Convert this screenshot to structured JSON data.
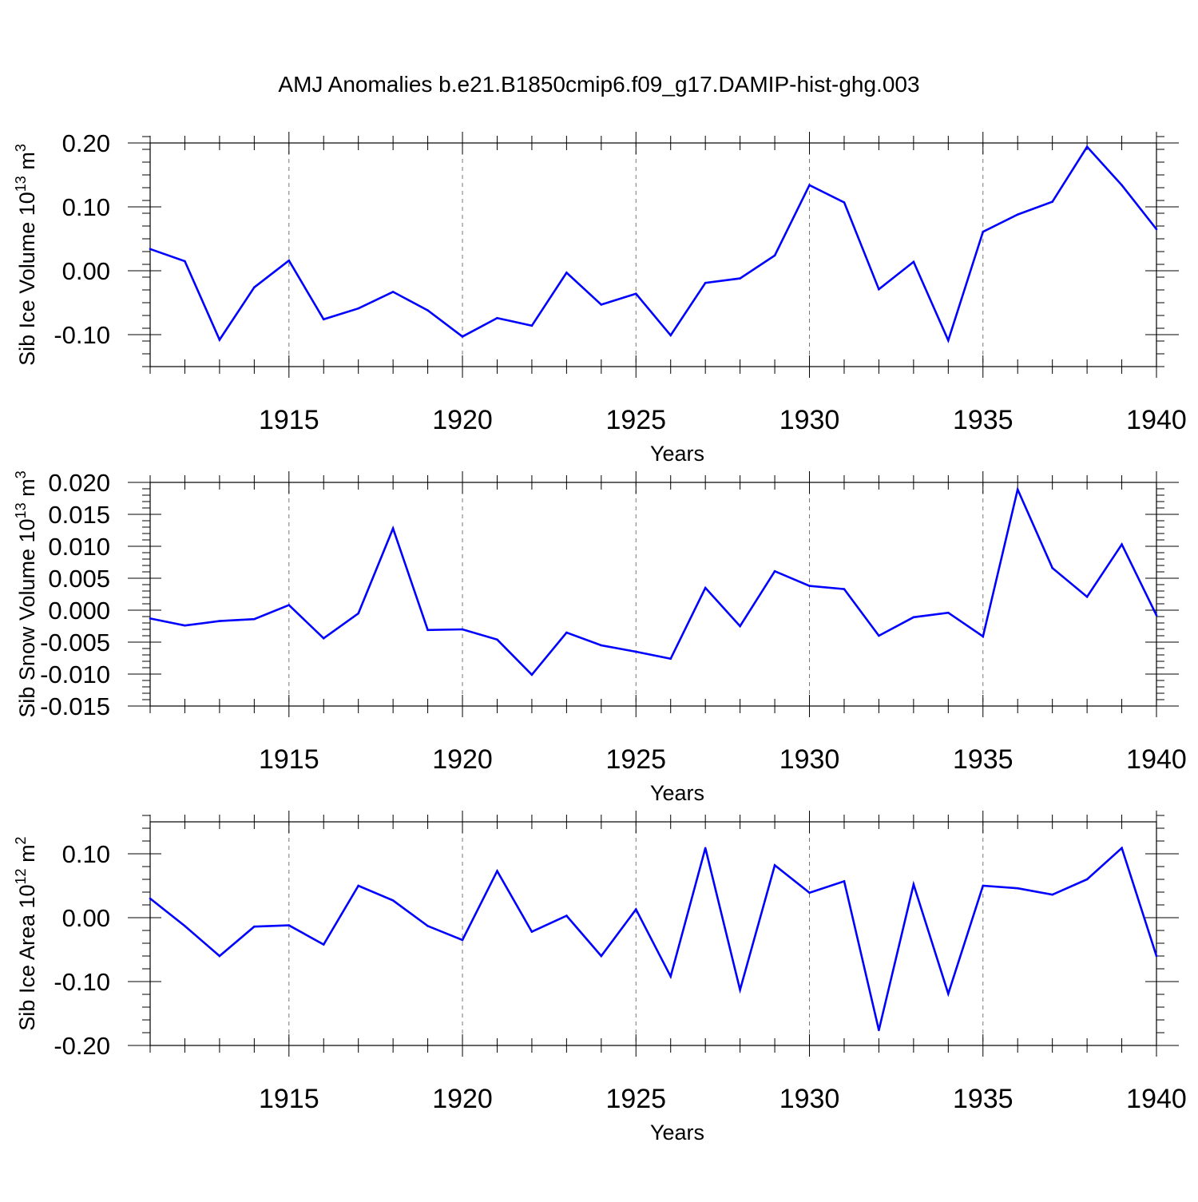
{
  "title": "AMJ Anomalies b.e21.B1850cmip6.f09_g17.DAMIP-hist-ghg.003",
  "chart_data": [
    {
      "type": "line",
      "ylabel": "Sib Ice Volume 10",
      "ylabel_exp": "13",
      "ylabel_unit": " m",
      "ylabel_unit_exp": "3",
      "xlabel": "Years",
      "xlim": [
        1911,
        1940
      ],
      "ylim": [
        -0.15,
        0.2
      ],
      "yticks": [
        -0.1,
        0.0,
        0.1,
        0.2
      ],
      "yticklabels": [
        "-0.10",
        "0.00",
        "0.10",
        "0.20"
      ],
      "yminor_step": 0.02,
      "xticks": [
        1915,
        1920,
        1925,
        1930,
        1935,
        1940
      ],
      "xticklabels": [
        "1915",
        "1920",
        "1925",
        "1930",
        "1935",
        "1940"
      ],
      "line_color": "#0000ff",
      "x": [
        1911,
        1912,
        1913,
        1914,
        1915,
        1916,
        1917,
        1918,
        1919,
        1920,
        1921,
        1922,
        1923,
        1924,
        1925,
        1926,
        1927,
        1928,
        1929,
        1930,
        1931,
        1932,
        1933,
        1934,
        1935,
        1936,
        1937,
        1938,
        1939,
        1940
      ],
      "values": [
        0.034,
        0.015,
        -0.108,
        -0.026,
        0.016,
        -0.076,
        -0.059,
        -0.033,
        -0.062,
        -0.103,
        -0.074,
        -0.086,
        -0.003,
        -0.053,
        -0.036,
        -0.101,
        -0.019,
        -0.012,
        0.024,
        0.134,
        0.107,
        -0.029,
        0.014,
        -0.109,
        0.061,
        0.088,
        0.108,
        0.194,
        0.134,
        0.065
      ]
    },
    {
      "type": "line",
      "ylabel": "Sib Snow Volume 10",
      "ylabel_exp": "13",
      "ylabel_unit": " m",
      "ylabel_unit_exp": "3",
      "xlabel": "Years",
      "xlim": [
        1911,
        1940
      ],
      "ylim": [
        -0.015,
        0.02
      ],
      "yticks": [
        -0.015,
        -0.01,
        -0.005,
        0.0,
        0.005,
        0.01,
        0.015,
        0.02
      ],
      "yticklabels": [
        "-0.015",
        "-0.010",
        "-0.005",
        "0.000",
        "0.005",
        "0.010",
        "0.015",
        "0.020"
      ],
      "yminor_step": 0.001,
      "xticks": [
        1915,
        1920,
        1925,
        1930,
        1935,
        1940
      ],
      "xticklabels": [
        "1915",
        "1920",
        "1925",
        "1930",
        "1935",
        "1940"
      ],
      "line_color": "#0000ff",
      "x": [
        1911,
        1912,
        1913,
        1914,
        1915,
        1916,
        1917,
        1918,
        1919,
        1920,
        1921,
        1922,
        1923,
        1924,
        1925,
        1926,
        1927,
        1928,
        1929,
        1930,
        1931,
        1932,
        1933,
        1934,
        1935,
        1936,
        1937,
        1938,
        1939,
        1940
      ],
      "values": [
        -0.0013,
        -0.0024,
        -0.0017,
        -0.0014,
        0.0008,
        -0.0044,
        -0.0005,
        0.0128,
        -0.0031,
        -0.003,
        -0.0046,
        -0.0101,
        -0.0035,
        -0.0055,
        -0.0065,
        -0.0076,
        0.0035,
        -0.0025,
        0.0061,
        0.0038,
        0.0033,
        -0.004,
        -0.0011,
        -0.0004,
        -0.0041,
        0.0189,
        0.0066,
        0.0021,
        0.0103,
        -0.0008
      ]
    },
    {
      "type": "line",
      "ylabel": "Sib Ice Area 10",
      "ylabel_exp": "12",
      "ylabel_unit": " m",
      "ylabel_unit_exp": "2",
      "xlabel": "Years",
      "xlim": [
        1911,
        1940
      ],
      "ylim": [
        -0.2,
        0.15
      ],
      "yticks": [
        -0.2,
        -0.1,
        0.0,
        0.1
      ],
      "yticklabels": [
        "-0.20",
        "-0.10",
        "0.00",
        "0.10"
      ],
      "yminor_step": 0.02,
      "xticks": [
        1915,
        1920,
        1925,
        1930,
        1935,
        1940
      ],
      "xticklabels": [
        "1915",
        "1920",
        "1925",
        "1930",
        "1935",
        "1940"
      ],
      "line_color": "#0000ff",
      "x": [
        1911,
        1912,
        1913,
        1914,
        1915,
        1916,
        1917,
        1918,
        1919,
        1920,
        1921,
        1922,
        1923,
        1924,
        1925,
        1926,
        1927,
        1928,
        1929,
        1930,
        1931,
        1932,
        1933,
        1934,
        1935,
        1936,
        1937,
        1938,
        1939,
        1940
      ],
      "values": [
        0.03,
        -0.013,
        -0.06,
        -0.014,
        -0.012,
        -0.042,
        0.05,
        0.027,
        -0.013,
        -0.035,
        0.073,
        -0.022,
        0.003,
        -0.06,
        0.013,
        -0.092,
        0.109,
        -0.113,
        0.082,
        0.039,
        0.057,
        -0.176,
        0.052,
        -0.119,
        0.05,
        0.046,
        0.036,
        0.06,
        0.109,
        -0.06
      ]
    }
  ]
}
